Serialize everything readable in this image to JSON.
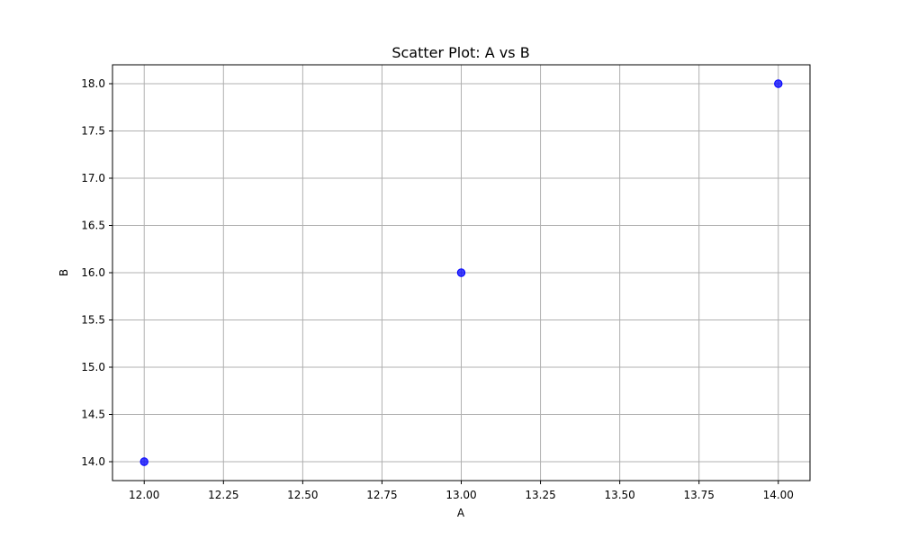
{
  "chart_data": {
    "type": "scatter",
    "title": "Scatter Plot: A vs B",
    "xlabel": "A",
    "ylabel": "B",
    "xlim": [
      11.9,
      14.1
    ],
    "ylim": [
      13.8,
      18.2
    ],
    "x_ticks": [
      12.0,
      12.25,
      12.5,
      12.75,
      13.0,
      13.25,
      13.5,
      13.75,
      14.0
    ],
    "x_tick_labels": [
      "12.00",
      "12.25",
      "12.50",
      "12.75",
      "13.00",
      "13.25",
      "13.50",
      "13.75",
      "14.00"
    ],
    "y_ticks": [
      14.0,
      14.5,
      15.0,
      15.5,
      16.0,
      16.5,
      17.0,
      17.5,
      18.0
    ],
    "y_tick_labels": [
      "14.0",
      "14.5",
      "15.0",
      "15.5",
      "16.0",
      "16.5",
      "17.0",
      "17.5",
      "18.0"
    ],
    "grid": true,
    "marker_color": "#0000ff",
    "points": [
      {
        "x": 12,
        "y": 14
      },
      {
        "x": 13,
        "y": 16
      },
      {
        "x": 14,
        "y": 18
      }
    ]
  }
}
